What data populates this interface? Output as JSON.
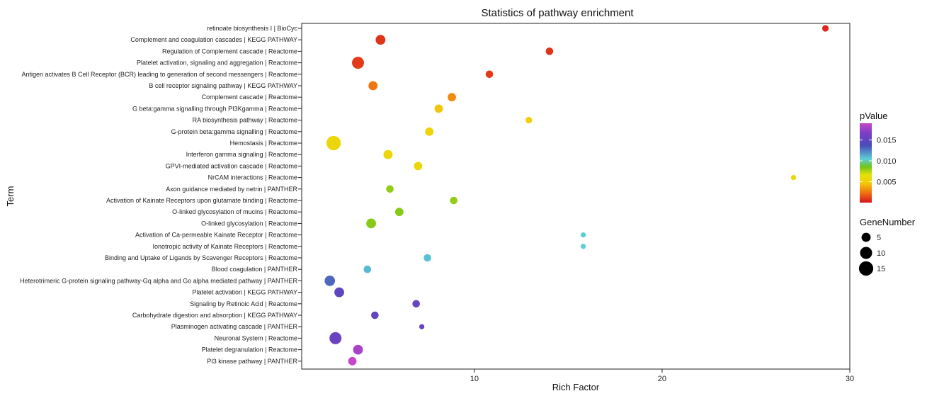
{
  "chart_data": {
    "type": "scatter",
    "title": "Statistics of pathway enrichment",
    "xlabel": "Rich Factor",
    "ylabel": "Term",
    "xlim": [
      0.8,
      30
    ],
    "xticks": [
      10,
      20,
      30
    ],
    "grid": false,
    "terms": [
      "retinoate biosynthesis I | BioCyc",
      "Complement and coagulation cascades | KEGG PATHWAY",
      "Regulation of Complement cascade | Reactome",
      "Platelet activation, signaling and aggregation | Reactome",
      "Antigen activates B Cell Receptor (BCR) leading to generation of second messengers | Reactome",
      "B cell receptor signaling pathway | KEGG PATHWAY",
      "Complement cascade | Reactome",
      "G beta:gamma signalling through PI3Kgamma | Reactome",
      "RA biosynthesis pathway | Reactome",
      "G-protein beta:gamma signalling | Reactome",
      "Hemostasis | Reactome",
      "Interferon gamma signaling | Reactome",
      "GPVI-mediated activation cascade | Reactome",
      "NrCAM interactions | Reactome",
      "Axon guidance mediated by netrin | PANTHER",
      "Activation of Kainate Receptors upon glutamate binding | Reactome",
      "O-linked glycosylation of mucins | Reactome",
      "O-linked glycosylation | Reactome",
      "Activation of Ca-permeable Kainate Receptor | Reactome",
      "Ionotropic activity of Kainate Receptors | Reactome",
      "Binding and Uptake of Ligands by Scavenger Receptors | Reactome",
      "Blood coagulation | PANTHER",
      "Heterotrimeric G-protein signaling pathway-Gq alpha and Go alpha mediated pathway | PANTHER",
      "Platelet activation | KEGG PATHWAY",
      "Signaling by Retinoic Acid | Reactome",
      "Carbohydrate digestion and absorption | KEGG PATHWAY",
      "Plasminogen activating cascade | PANTHER",
      "Neuronal System | Reactome",
      "Platelet degranulation  | Reactome",
      "PI3 kinase pathway | PANTHER"
    ],
    "points": [
      {
        "x": 28.7,
        "gene_number": 2,
        "pvalue": 0.0005
      },
      {
        "x": 5.0,
        "gene_number": 6,
        "pvalue": 0.0008
      },
      {
        "x": 14.0,
        "gene_number": 3,
        "pvalue": 0.0008
      },
      {
        "x": 3.8,
        "gene_number": 10,
        "pvalue": 0.001
      },
      {
        "x": 10.8,
        "gene_number": 3,
        "pvalue": 0.001
      },
      {
        "x": 4.6,
        "gene_number": 5,
        "pvalue": 0.0025
      },
      {
        "x": 8.8,
        "gene_number": 4,
        "pvalue": 0.003
      },
      {
        "x": 8.1,
        "gene_number": 4,
        "pvalue": 0.0045
      },
      {
        "x": 12.9,
        "gene_number": 2,
        "pvalue": 0.0048
      },
      {
        "x": 7.6,
        "gene_number": 4,
        "pvalue": 0.0052
      },
      {
        "x": 2.5,
        "gene_number": 15,
        "pvalue": 0.0055
      },
      {
        "x": 5.4,
        "gene_number": 5,
        "pvalue": 0.0055
      },
      {
        "x": 7.0,
        "gene_number": 4,
        "pvalue": 0.0055
      },
      {
        "x": 27.0,
        "gene_number": 1,
        "pvalue": 0.0055
      },
      {
        "x": 5.5,
        "gene_number": 3,
        "pvalue": 0.008
      },
      {
        "x": 8.9,
        "gene_number": 3,
        "pvalue": 0.008
      },
      {
        "x": 6.0,
        "gene_number": 4,
        "pvalue": 0.0082
      },
      {
        "x": 4.5,
        "gene_number": 6,
        "pvalue": 0.0082
      },
      {
        "x": 15.8,
        "gene_number": 1,
        "pvalue": 0.0105
      },
      {
        "x": 15.8,
        "gene_number": 1,
        "pvalue": 0.0105
      },
      {
        "x": 7.5,
        "gene_number": 3,
        "pvalue": 0.0108
      },
      {
        "x": 4.3,
        "gene_number": 3,
        "pvalue": 0.011
      },
      {
        "x": 2.3,
        "gene_number": 7,
        "pvalue": 0.013
      },
      {
        "x": 2.8,
        "gene_number": 6,
        "pvalue": 0.0148
      },
      {
        "x": 6.9,
        "gene_number": 3,
        "pvalue": 0.0152
      },
      {
        "x": 4.7,
        "gene_number": 3,
        "pvalue": 0.0152
      },
      {
        "x": 7.2,
        "gene_number": 1,
        "pvalue": 0.0156
      },
      {
        "x": 2.6,
        "gene_number": 10,
        "pvalue": 0.0156
      },
      {
        "x": 3.8,
        "gene_number": 6,
        "pvalue": 0.018
      },
      {
        "x": 3.5,
        "gene_number": 4,
        "pvalue": 0.019
      }
    ],
    "color_legend": {
      "title": "pValue",
      "ticks": [
        0.015,
        0.01,
        0.005
      ],
      "tick_labels": [
        "0.015",
        "0.010",
        "0.005"
      ],
      "range": [
        0.0,
        0.019
      ]
    },
    "size_legend": {
      "title": "GeneNumber",
      "values": [
        5,
        10,
        15
      ],
      "labels": [
        "5",
        "10",
        "15"
      ]
    },
    "colors": {
      "gradient": [
        "#d8141e",
        "#f06e10",
        "#f2ce0a",
        "#e3e20a",
        "#72c41a",
        "#5ccfd6",
        "#4a4cb8",
        "#7a3ec6",
        "#c546c6"
      ]
    }
  }
}
